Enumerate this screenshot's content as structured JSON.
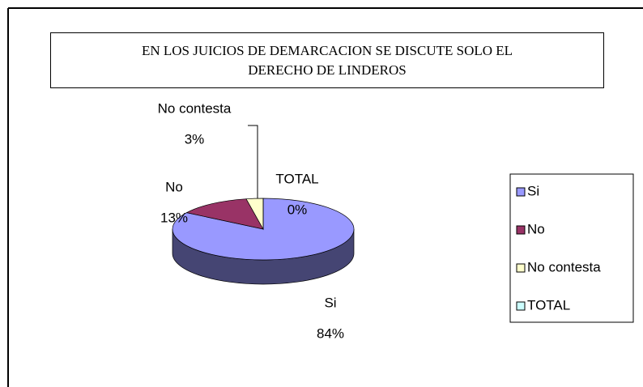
{
  "chart_data": {
    "type": "pie",
    "title": "EN LOS JUICIOS DE DEMARCACION SE DISCUTE SOLO EL DERECHO DE LINDEROS",
    "categories": [
      "Si",
      "No",
      "No contesta",
      "TOTAL"
    ],
    "values": [
      84,
      13,
      3,
      0
    ],
    "value_labels": [
      "84%",
      "13%",
      "3%",
      "0%"
    ],
    "colors": [
      "#9999ff",
      "#993366",
      "#ffffcc",
      "#ccffff"
    ],
    "legend": "right"
  }
}
